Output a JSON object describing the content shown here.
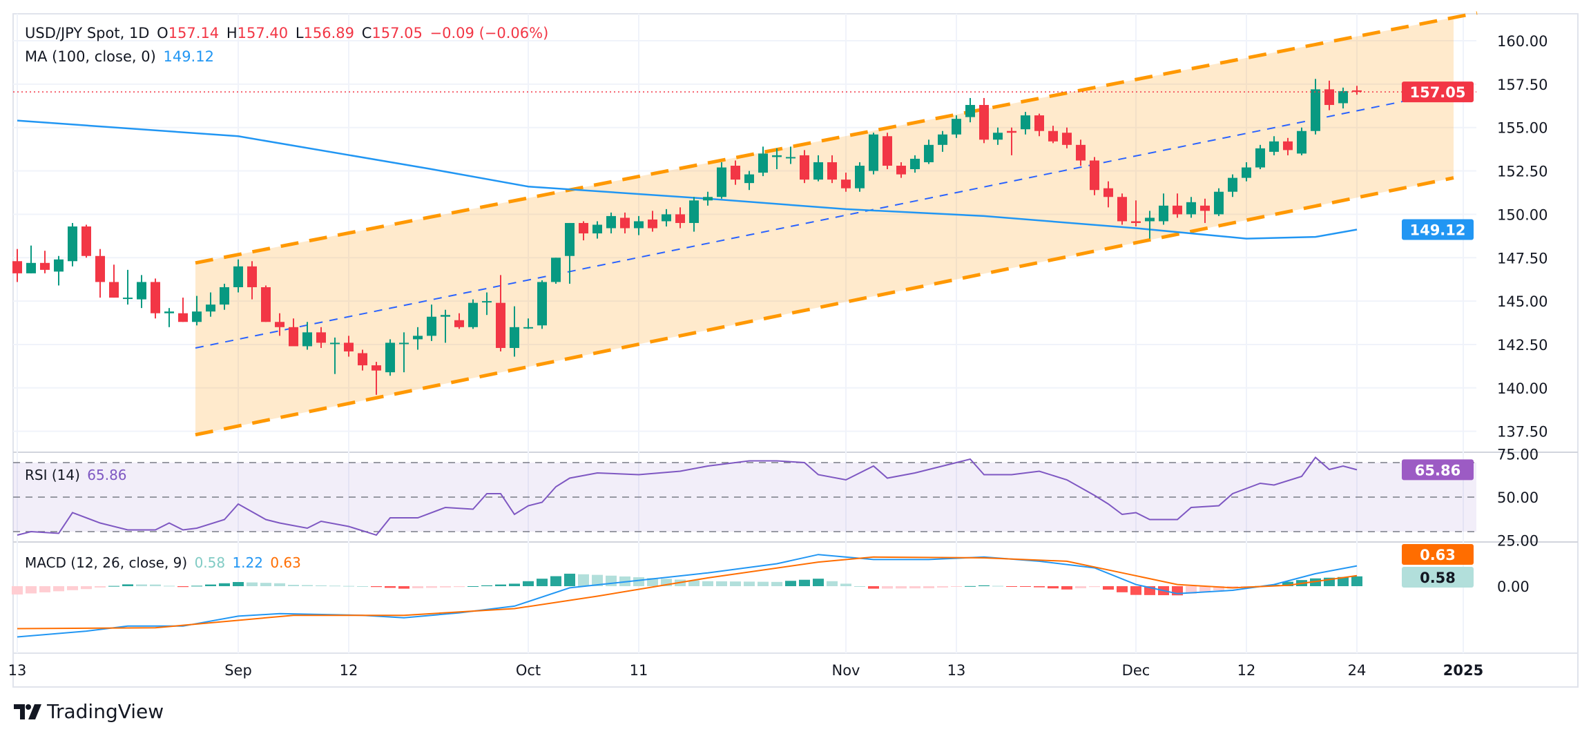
{
  "header": {
    "symbol": "USD/JPY Spot, 1D",
    "open_label": "O",
    "open": "157.14",
    "high_label": "H",
    "high": "157.40",
    "low_label": "L",
    "low": "156.89",
    "close_label": "C",
    "close": "157.05",
    "change": "−0.09 (−0.06%)"
  },
  "ma_legend": {
    "label": "MA (100, close, 0)",
    "value": "149.12"
  },
  "rsi_legend": {
    "label": "RSI (14)",
    "value": "65.86"
  },
  "macd_legend": {
    "label": "MACD (12, 26, close, 9)",
    "hist": "0.58",
    "macd": "1.22",
    "signal": "0.63"
  },
  "brand": "TradingView",
  "colors": {
    "up": "#089981",
    "down": "#f23645",
    "ma": "#2196f3",
    "channel": "#ff9800",
    "midline": "#2962ff",
    "rsi": "#7e57c2",
    "macd": "#2196f3",
    "signal": "#ff6d00"
  },
  "chart_data": [
    {
      "type": "candlestick",
      "title": "USD/JPY Spot, 1D",
      "ylim": [
        136.5,
        161.5
      ],
      "y_ticks": [
        "160.00",
        "157.50",
        "155.00",
        "152.50",
        "150.00",
        "147.50",
        "145.00",
        "142.50",
        "140.00",
        "137.50"
      ],
      "x_ticks": [
        {
          "label": "13",
          "bar": 0
        },
        {
          "label": "Sep",
          "bar": 16
        },
        {
          "label": "12",
          "bar": 24
        },
        {
          "label": "Oct",
          "bar": 37
        },
        {
          "label": "11",
          "bar": 45
        },
        {
          "label": "Nov",
          "bar": 60
        },
        {
          "label": "13",
          "bar": 68
        },
        {
          "label": "Dec",
          "bar": 81
        },
        {
          "label": "12",
          "bar": 89
        },
        {
          "label": "24",
          "bar": 97
        },
        {
          "label": "2025",
          "bar": 104.7
        }
      ],
      "ohlc": [
        [
          147.3,
          148.0,
          146.1,
          146.6
        ],
        [
          146.6,
          148.2,
          146.6,
          147.2
        ],
        [
          147.2,
          147.9,
          146.6,
          146.8
        ],
        [
          146.7,
          147.6,
          145.9,
          147.4
        ],
        [
          147.3,
          149.5,
          147.0,
          149.3
        ],
        [
          149.3,
          149.4,
          147.5,
          147.6
        ],
        [
          147.6,
          148.0,
          145.2,
          146.1
        ],
        [
          146.1,
          147.1,
          145.2,
          145.2
        ],
        [
          145.2,
          146.8,
          144.8,
          145.2
        ],
        [
          145.1,
          146.5,
          144.6,
          146.1
        ],
        [
          146.1,
          146.3,
          144.0,
          144.3
        ],
        [
          144.3,
          144.6,
          143.5,
          144.4
        ],
        [
          144.3,
          145.2,
          143.8,
          143.8
        ],
        [
          143.8,
          145.3,
          143.6,
          144.4
        ],
        [
          144.4,
          145.5,
          144.1,
          144.8
        ],
        [
          144.8,
          146.0,
          144.5,
          145.8
        ],
        [
          145.8,
          147.4,
          145.5,
          147.0
        ],
        [
          147.0,
          147.3,
          145.1,
          145.8
        ],
        [
          145.8,
          145.9,
          143.8,
          143.8
        ],
        [
          143.8,
          144.3,
          143.0,
          143.5
        ],
        [
          143.5,
          144.0,
          142.5,
          142.4
        ],
        [
          142.4,
          143.8,
          142.2,
          143.2
        ],
        [
          143.2,
          143.5,
          142.3,
          142.6
        ],
        [
          142.6,
          142.9,
          140.8,
          142.6
        ],
        [
          142.6,
          143.0,
          141.8,
          142.1
        ],
        [
          142.0,
          142.2,
          141.0,
          141.3
        ],
        [
          141.3,
          141.5,
          139.6,
          141.0
        ],
        [
          140.9,
          142.8,
          140.7,
          142.6
        ],
        [
          142.6,
          143.2,
          140.9,
          142.6
        ],
        [
          142.8,
          143.5,
          142.2,
          143.0
        ],
        [
          143.0,
          144.8,
          142.7,
          144.1
        ],
        [
          144.1,
          144.5,
          142.6,
          144.2
        ],
        [
          143.9,
          144.3,
          143.4,
          143.5
        ],
        [
          143.5,
          145.1,
          143.4,
          144.9
        ],
        [
          145.0,
          145.5,
          144.2,
          145.0
        ],
        [
          144.9,
          146.5,
          142.1,
          142.3
        ],
        [
          142.3,
          144.7,
          141.8,
          143.5
        ],
        [
          143.5,
          144.0,
          143.4,
          143.5
        ],
        [
          143.6,
          146.2,
          143.4,
          146.1
        ],
        [
          146.1,
          147.5,
          146.0,
          147.5
        ],
        [
          147.6,
          149.5,
          146.0,
          149.5
        ],
        [
          149.5,
          149.6,
          148.5,
          148.9
        ],
        [
          148.9,
          149.6,
          148.6,
          149.4
        ],
        [
          149.2,
          150.1,
          148.9,
          149.9
        ],
        [
          149.8,
          150.1,
          148.9,
          149.2
        ],
        [
          149.2,
          149.9,
          148.8,
          149.6
        ],
        [
          149.7,
          150.2,
          149.0,
          149.2
        ],
        [
          149.6,
          150.3,
          149.3,
          150.0
        ],
        [
          150.0,
          150.4,
          149.2,
          149.5
        ],
        [
          149.5,
          151.0,
          149.0,
          150.8
        ],
        [
          150.8,
          151.3,
          150.5,
          151.0
        ],
        [
          151.0,
          153.0,
          150.9,
          152.7
        ],
        [
          152.8,
          153.1,
          151.7,
          152.0
        ],
        [
          151.8,
          152.5,
          151.4,
          152.3
        ],
        [
          152.4,
          153.9,
          152.2,
          153.5
        ],
        [
          153.3,
          153.8,
          152.6,
          153.4
        ],
        [
          153.3,
          153.9,
          152.9,
          153.3
        ],
        [
          153.4,
          153.7,
          151.8,
          152.0
        ],
        [
          152.0,
          153.4,
          151.9,
          153.0
        ],
        [
          153.0,
          153.4,
          151.8,
          152.0
        ],
        [
          152.0,
          152.4,
          151.3,
          151.5
        ],
        [
          151.5,
          153.0,
          151.3,
          152.8
        ],
        [
          152.5,
          154.7,
          152.3,
          154.6
        ],
        [
          154.5,
          154.7,
          152.6,
          152.8
        ],
        [
          152.8,
          153.0,
          152.1,
          152.3
        ],
        [
          152.6,
          153.4,
          152.4,
          153.2
        ],
        [
          153.0,
          154.3,
          152.9,
          154.0
        ],
        [
          154.0,
          154.8,
          153.6,
          154.6
        ],
        [
          154.6,
          155.7,
          154.4,
          155.5
        ],
        [
          155.6,
          156.7,
          155.3,
          156.3
        ],
        [
          156.3,
          156.7,
          154.1,
          154.3
        ],
        [
          154.3,
          155.0,
          154.0,
          154.7
        ],
        [
          154.8,
          155.0,
          153.4,
          154.7
        ],
        [
          154.9,
          155.9,
          154.6,
          155.7
        ],
        [
          155.7,
          155.8,
          154.5,
          154.8
        ],
        [
          154.8,
          155.1,
          154.1,
          154.2
        ],
        [
          154.7,
          155.0,
          153.8,
          154.0
        ],
        [
          154.0,
          154.3,
          152.8,
          153.1
        ],
        [
          153.1,
          153.3,
          151.1,
          151.4
        ],
        [
          151.5,
          151.9,
          150.4,
          151.0
        ],
        [
          151.0,
          151.2,
          149.4,
          149.6
        ],
        [
          149.6,
          150.8,
          149.3,
          149.5
        ],
        [
          149.6,
          150.2,
          148.6,
          149.8
        ],
        [
          149.6,
          151.2,
          149.4,
          150.5
        ],
        [
          150.5,
          151.2,
          149.8,
          150.0
        ],
        [
          150.0,
          151.0,
          149.8,
          150.7
        ],
        [
          150.5,
          150.9,
          149.5,
          150.2
        ],
        [
          150.0,
          151.5,
          149.9,
          151.3
        ],
        [
          151.3,
          152.3,
          151.0,
          152.1
        ],
        [
          152.1,
          153.0,
          151.9,
          152.7
        ],
        [
          152.7,
          154.0,
          152.6,
          153.8
        ],
        [
          153.6,
          154.5,
          153.4,
          154.2
        ],
        [
          154.2,
          154.4,
          153.4,
          153.7
        ],
        [
          153.5,
          155.0,
          153.4,
          154.8
        ],
        [
          154.8,
          157.8,
          154.6,
          157.2
        ],
        [
          157.2,
          157.7,
          156.0,
          156.3
        ],
        [
          156.4,
          157.3,
          156.1,
          157.1
        ],
        [
          157.14,
          157.4,
          156.89,
          157.05
        ]
      ],
      "ma100": [
        [
          0,
          155.4
        ],
        [
          16,
          154.5
        ],
        [
          30,
          152.6
        ],
        [
          37,
          151.6
        ],
        [
          50,
          150.9
        ],
        [
          60,
          150.3
        ],
        [
          70,
          149.9
        ],
        [
          81,
          149.2
        ],
        [
          89,
          148.6
        ],
        [
          94,
          148.7
        ],
        [
          97,
          149.12
        ]
      ],
      "channel": {
        "upper": [
          [
            12.9,
            147.2
          ],
          [
            105.7,
            161.6
          ]
        ],
        "middle": [
          [
            12.9,
            142.3
          ],
          [
            104,
            157.1
          ]
        ],
        "lower": [
          [
            12.9,
            137.3
          ],
          [
            104,
            152.1
          ]
        ]
      },
      "last_price": "157.05",
      "ma_price_tag": "149.12"
    },
    {
      "type": "line",
      "title": "RSI (14)",
      "ylim": [
        25,
        75
      ],
      "y_ticks": [
        "75.00",
        "50.00",
        "25.00"
      ],
      "bands": [
        70,
        50,
        30
      ],
      "values": [
        [
          0,
          28
        ],
        [
          1,
          30
        ],
        [
          3,
          29
        ],
        [
          4,
          41
        ],
        [
          6,
          35
        ],
        [
          8,
          31
        ],
        [
          10,
          31
        ],
        [
          11,
          35
        ],
        [
          12,
          31
        ],
        [
          13,
          32
        ],
        [
          15,
          37
        ],
        [
          16,
          46
        ],
        [
          18,
          37
        ],
        [
          19,
          35
        ],
        [
          21,
          32
        ],
        [
          22,
          36
        ],
        [
          24,
          33
        ],
        [
          26,
          28
        ],
        [
          27,
          38
        ],
        [
          29,
          38
        ],
        [
          31,
          44
        ],
        [
          33,
          43
        ],
        [
          34,
          52
        ],
        [
          35,
          52
        ],
        [
          36,
          40
        ],
        [
          37,
          45
        ],
        [
          38,
          47
        ],
        [
          39,
          56
        ],
        [
          40,
          61
        ],
        [
          42,
          64
        ],
        [
          45,
          63
        ],
        [
          48,
          65
        ],
        [
          50,
          68
        ],
        [
          53,
          71
        ],
        [
          55,
          71
        ],
        [
          57,
          70
        ],
        [
          58,
          63
        ],
        [
          60,
          60
        ],
        [
          62,
          68
        ],
        [
          63,
          61
        ],
        [
          65,
          64
        ],
        [
          68,
          70
        ],
        [
          69,
          72
        ],
        [
          70,
          63
        ],
        [
          72,
          63
        ],
        [
          74,
          65
        ],
        [
          76,
          60
        ],
        [
          78,
          51
        ],
        [
          79,
          46
        ],
        [
          80,
          40
        ],
        [
          81,
          41
        ],
        [
          82,
          37
        ],
        [
          84,
          37
        ],
        [
          85,
          44
        ],
        [
          87,
          45
        ],
        [
          88,
          52
        ],
        [
          90,
          58
        ],
        [
          91,
          57
        ],
        [
          93,
          62
        ],
        [
          94,
          73
        ],
        [
          95,
          66
        ],
        [
          96,
          68
        ],
        [
          97,
          65.86
        ]
      ],
      "last_value": "65.86"
    },
    {
      "type": "line",
      "title": "MACD (12, 26, close, 9)",
      "y_ticks": [
        "0.00"
      ],
      "macd": [
        [
          0,
          -3.05
        ],
        [
          5,
          -2.7
        ],
        [
          8,
          -2.4
        ],
        [
          12,
          -2.4
        ],
        [
          16,
          -1.8
        ],
        [
          19,
          -1.65
        ],
        [
          25,
          -1.75
        ],
        [
          28,
          -1.9
        ],
        [
          32,
          -1.6
        ],
        [
          36,
          -1.2
        ],
        [
          40,
          -0.1
        ],
        [
          45,
          0.35
        ],
        [
          50,
          0.8
        ],
        [
          55,
          1.35
        ],
        [
          58,
          1.9
        ],
        [
          62,
          1.6
        ],
        [
          66,
          1.6
        ],
        [
          70,
          1.75
        ],
        [
          74,
          1.5
        ],
        [
          78,
          1.1
        ],
        [
          81,
          0.1
        ],
        [
          84,
          -0.45
        ],
        [
          88,
          -0.25
        ],
        [
          91,
          0.1
        ],
        [
          94,
          0.75
        ],
        [
          97,
          1.22
        ]
      ],
      "signal": [
        [
          0,
          -2.55
        ],
        [
          10,
          -2.5
        ],
        [
          20,
          -1.75
        ],
        [
          28,
          -1.75
        ],
        [
          36,
          -1.35
        ],
        [
          42,
          -0.6
        ],
        [
          50,
          0.5
        ],
        [
          58,
          1.45
        ],
        [
          62,
          1.75
        ],
        [
          70,
          1.7
        ],
        [
          76,
          1.5
        ],
        [
          80,
          0.8
        ],
        [
          84,
          0.1
        ],
        [
          88,
          -0.1
        ],
        [
          92,
          0.05
        ],
        [
          97,
          0.63
        ]
      ],
      "signal_tag": "0.63",
      "hist_tag": "0.58"
    }
  ]
}
